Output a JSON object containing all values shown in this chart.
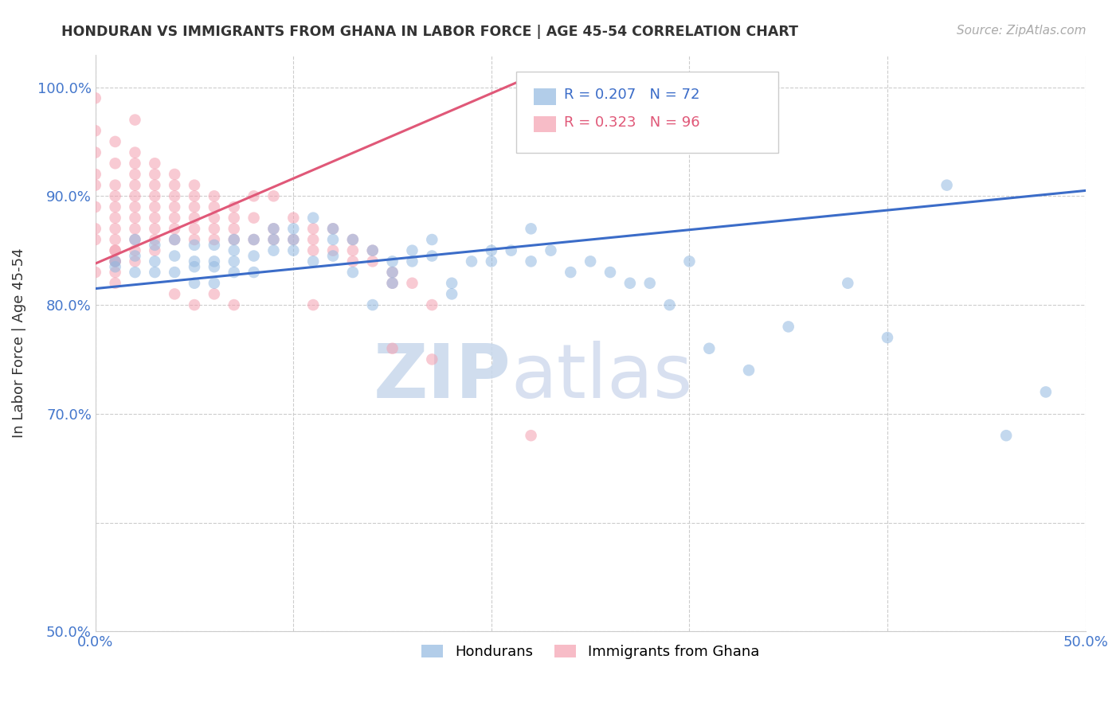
{
  "title": "HONDURAN VS IMMIGRANTS FROM GHANA IN LABOR FORCE | AGE 45-54 CORRELATION CHART",
  "source": "Source: ZipAtlas.com",
  "ylabel": "In Labor Force | Age 45-54",
  "xlim": [
    0.0,
    0.5
  ],
  "ylim": [
    0.5,
    1.03
  ],
  "x_ticks": [
    0.0,
    0.1,
    0.2,
    0.3,
    0.4,
    0.5
  ],
  "y_ticks": [
    0.5,
    0.6,
    0.7,
    0.8,
    0.9,
    1.0
  ],
  "blue_R": 0.207,
  "blue_N": 72,
  "pink_R": 0.323,
  "pink_N": 96,
  "blue_color": "#92B8E0",
  "pink_color": "#F4A0B0",
  "blue_line_color": "#3B6CC8",
  "pink_line_color": "#E05878",
  "blue_label": "Hondurans",
  "pink_label": "Immigrants from Ghana",
  "watermark_zip": "ZIP",
  "watermark_atlas": "atlas",
  "blue_line_x": [
    0.0,
    0.5
  ],
  "blue_line_y": [
    0.815,
    0.905
  ],
  "pink_line_x": [
    0.0,
    0.22
  ],
  "pink_line_y": [
    0.838,
    1.01
  ],
  "blue_scatter_x": [
    0.01,
    0.01,
    0.02,
    0.02,
    0.02,
    0.03,
    0.03,
    0.03,
    0.04,
    0.04,
    0.04,
    0.05,
    0.05,
    0.05,
    0.05,
    0.06,
    0.06,
    0.06,
    0.06,
    0.07,
    0.07,
    0.07,
    0.07,
    0.08,
    0.08,
    0.08,
    0.09,
    0.09,
    0.09,
    0.1,
    0.1,
    0.1,
    0.11,
    0.11,
    0.12,
    0.12,
    0.12,
    0.13,
    0.13,
    0.14,
    0.14,
    0.15,
    0.15,
    0.15,
    0.16,
    0.16,
    0.17,
    0.17,
    0.18,
    0.18,
    0.19,
    0.2,
    0.2,
    0.21,
    0.22,
    0.22,
    0.23,
    0.24,
    0.25,
    0.26,
    0.27,
    0.28,
    0.29,
    0.3,
    0.31,
    0.33,
    0.35,
    0.38,
    0.4,
    0.43,
    0.46,
    0.48
  ],
  "blue_scatter_y": [
    0.84,
    0.835,
    0.86,
    0.845,
    0.83,
    0.855,
    0.84,
    0.83,
    0.86,
    0.845,
    0.83,
    0.855,
    0.84,
    0.835,
    0.82,
    0.855,
    0.84,
    0.835,
    0.82,
    0.86,
    0.85,
    0.84,
    0.83,
    0.86,
    0.845,
    0.83,
    0.87,
    0.86,
    0.85,
    0.87,
    0.86,
    0.85,
    0.88,
    0.84,
    0.87,
    0.86,
    0.845,
    0.86,
    0.83,
    0.85,
    0.8,
    0.84,
    0.83,
    0.82,
    0.85,
    0.84,
    0.86,
    0.845,
    0.82,
    0.81,
    0.84,
    0.85,
    0.84,
    0.85,
    0.87,
    0.84,
    0.85,
    0.83,
    0.84,
    0.83,
    0.82,
    0.82,
    0.8,
    0.84,
    0.76,
    0.74,
    0.78,
    0.82,
    0.77,
    0.91,
    0.68,
    0.72
  ],
  "pink_scatter_x": [
    0.0,
    0.0,
    0.0,
    0.0,
    0.0,
    0.0,
    0.0,
    0.0,
    0.0,
    0.01,
    0.01,
    0.01,
    0.01,
    0.01,
    0.01,
    0.01,
    0.01,
    0.01,
    0.01,
    0.01,
    0.01,
    0.01,
    0.01,
    0.02,
    0.02,
    0.02,
    0.02,
    0.02,
    0.02,
    0.02,
    0.02,
    0.02,
    0.02,
    0.02,
    0.02,
    0.03,
    0.03,
    0.03,
    0.03,
    0.03,
    0.03,
    0.03,
    0.03,
    0.03,
    0.04,
    0.04,
    0.04,
    0.04,
    0.04,
    0.04,
    0.04,
    0.04,
    0.05,
    0.05,
    0.05,
    0.05,
    0.05,
    0.05,
    0.05,
    0.06,
    0.06,
    0.06,
    0.06,
    0.06,
    0.06,
    0.07,
    0.07,
    0.07,
    0.07,
    0.07,
    0.08,
    0.08,
    0.08,
    0.09,
    0.09,
    0.09,
    0.1,
    0.1,
    0.11,
    0.11,
    0.11,
    0.11,
    0.12,
    0.12,
    0.13,
    0.13,
    0.13,
    0.14,
    0.14,
    0.15,
    0.15,
    0.15,
    0.16,
    0.17,
    0.17,
    0.22
  ],
  "pink_scatter_y": [
    0.99,
    0.96,
    0.94,
    0.92,
    0.91,
    0.89,
    0.87,
    0.86,
    0.83,
    0.95,
    0.93,
    0.91,
    0.9,
    0.89,
    0.88,
    0.87,
    0.86,
    0.85,
    0.85,
    0.84,
    0.84,
    0.83,
    0.82,
    0.97,
    0.94,
    0.93,
    0.92,
    0.91,
    0.9,
    0.89,
    0.88,
    0.87,
    0.86,
    0.85,
    0.84,
    0.93,
    0.92,
    0.91,
    0.9,
    0.89,
    0.88,
    0.87,
    0.86,
    0.85,
    0.92,
    0.91,
    0.9,
    0.89,
    0.88,
    0.87,
    0.86,
    0.81,
    0.91,
    0.9,
    0.89,
    0.88,
    0.87,
    0.86,
    0.8,
    0.9,
    0.89,
    0.88,
    0.87,
    0.86,
    0.81,
    0.89,
    0.88,
    0.87,
    0.86,
    0.8,
    0.9,
    0.88,
    0.86,
    0.9,
    0.87,
    0.86,
    0.88,
    0.86,
    0.87,
    0.86,
    0.85,
    0.8,
    0.87,
    0.85,
    0.86,
    0.85,
    0.84,
    0.85,
    0.84,
    0.83,
    0.82,
    0.76,
    0.82,
    0.8,
    0.75,
    0.68
  ]
}
